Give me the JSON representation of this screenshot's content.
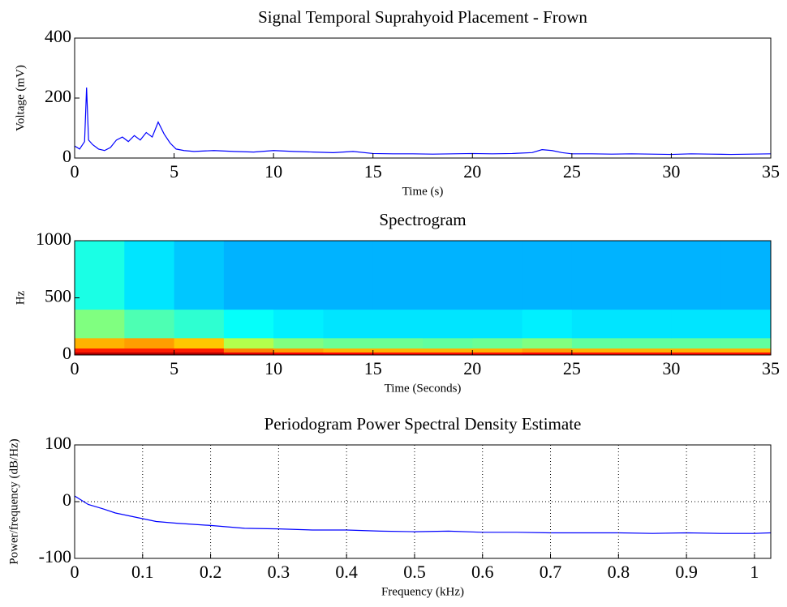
{
  "chart_data": [
    {
      "type": "line",
      "title": "Signal Temporal Suprahyoid Placement - Frown",
      "x_label": "Time (s)",
      "y_label": "Voltage (mV)",
      "x": [
        0,
        0.25,
        0.5,
        0.6,
        0.7,
        0.9,
        1.2,
        1.5,
        1.8,
        2.1,
        2.4,
        2.7,
        3.0,
        3.3,
        3.6,
        3.9,
        4.2,
        4.5,
        4.8,
        5.1,
        5.5,
        6,
        7,
        8,
        9,
        10,
        11,
        12,
        13,
        14,
        15,
        16,
        17,
        18,
        19,
        20,
        21,
        22,
        23,
        23.5,
        24,
        24.5,
        25,
        26,
        27,
        28,
        29,
        30,
        31,
        32,
        33,
        34,
        35
      ],
      "series": [
        {
          "color": "#0000ff",
          "values": [
            40,
            30,
            55,
            235,
            60,
            45,
            30,
            25,
            35,
            60,
            70,
            55,
            75,
            60,
            85,
            70,
            120,
            80,
            50,
            30,
            25,
            22,
            25,
            22,
            20,
            25,
            22,
            20,
            18,
            22,
            15,
            14,
            14,
            13,
            14,
            15,
            14,
            15,
            18,
            28,
            25,
            18,
            14,
            14,
            13,
            14,
            13,
            12,
            14,
            13,
            12,
            13,
            14
          ]
        }
      ],
      "xlim": [
        0,
        35
      ],
      "xticks": [
        0,
        5,
        10,
        15,
        20,
        25,
        30,
        35
      ],
      "ylim": [
        0,
        400
      ],
      "yticks": [
        0,
        200,
        400
      ],
      "grid": false
    },
    {
      "type": "heatmap",
      "title": "Spectrogram",
      "x_label": "Time (Seconds)",
      "y_label": "Hz",
      "x_edges": [
        0,
        2.5,
        5,
        7.5,
        10,
        12.5,
        15,
        17.5,
        20,
        22.5,
        25,
        27.5,
        30,
        32.5,
        35
      ],
      "y_edges": [
        0,
        25,
        60,
        150,
        400,
        1000
      ],
      "z": [
        [
          0.95,
          0.95,
          0.95,
          0.9,
          0.88,
          0.87,
          0.86,
          0.86,
          0.86,
          0.87,
          0.86,
          0.86,
          0.86,
          0.86
        ],
        [
          0.85,
          0.85,
          0.85,
          0.75,
          0.72,
          0.7,
          0.7,
          0.7,
          0.7,
          0.72,
          0.7,
          0.7,
          0.7,
          0.7
        ],
        [
          0.7,
          0.72,
          0.68,
          0.55,
          0.5,
          0.48,
          0.48,
          0.47,
          0.48,
          0.5,
          0.47,
          0.47,
          0.47,
          0.47
        ],
        [
          0.5,
          0.45,
          0.42,
          0.38,
          0.36,
          0.35,
          0.35,
          0.35,
          0.35,
          0.36,
          0.35,
          0.35,
          0.35,
          0.35
        ],
        [
          0.4,
          0.35,
          0.32,
          0.3,
          0.3,
          0.3,
          0.3,
          0.3,
          0.3,
          0.3,
          0.3,
          0.3,
          0.3,
          0.3
        ]
      ],
      "clim": [
        0,
        1
      ],
      "colormap": "jet",
      "xlim": [
        0,
        35
      ],
      "xticks": [
        0,
        5,
        10,
        15,
        20,
        25,
        30,
        35
      ],
      "ylim": [
        0,
        1000
      ],
      "yticks": [
        0,
        500,
        1000
      ],
      "grid": false
    },
    {
      "type": "line",
      "title": "Periodogram Power Spectral Density Estimate",
      "x_label": "Frequency (kHz)",
      "y_label": "Power/frequency (dB/Hz)",
      "x": [
        0,
        0.02,
        0.04,
        0.06,
        0.08,
        0.1,
        0.12,
        0.15,
        0.2,
        0.25,
        0.3,
        0.35,
        0.4,
        0.45,
        0.5,
        0.55,
        0.6,
        0.65,
        0.7,
        0.75,
        0.8,
        0.85,
        0.9,
        0.95,
        1.0,
        1.024
      ],
      "series": [
        {
          "color": "#0000ff",
          "values": [
            10,
            -5,
            -12,
            -20,
            -25,
            -30,
            -35,
            -38,
            -42,
            -47,
            -48,
            -50,
            -50,
            -52,
            -53,
            -52,
            -54,
            -54,
            -55,
            -55,
            -55,
            -56,
            -55,
            -56,
            -56,
            -55
          ]
        }
      ],
      "xlim": [
        0,
        1.024
      ],
      "xticks": [
        0,
        0.1,
        0.2,
        0.3,
        0.4,
        0.5,
        0.6,
        0.7,
        0.8,
        0.9,
        1
      ],
      "ylim": [
        -100,
        100
      ],
      "yticks": [
        -100,
        0,
        100
      ],
      "grid": true
    }
  ]
}
